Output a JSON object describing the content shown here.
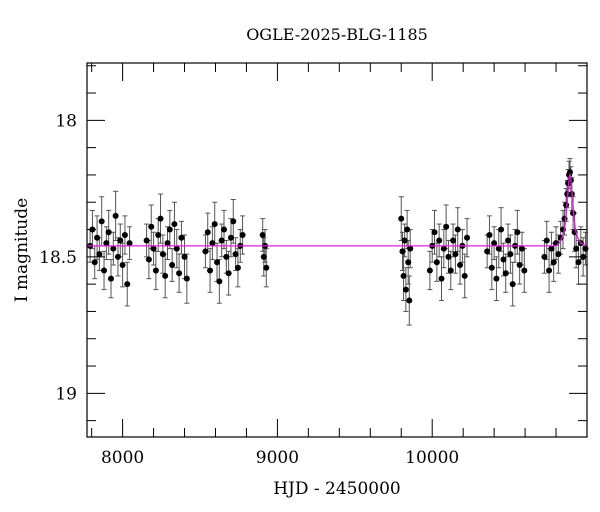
{
  "chart_data": {
    "type": "scatter",
    "title": "OGLE-2025-BLG-1185",
    "xlabel": "HJD - 2450000",
    "ylabel": "I magnitude",
    "xlim": [
      7770,
      11000
    ],
    "ylim": [
      17.79,
      19.16
    ],
    "y_inverted": true,
    "grid": false,
    "x_major_ticks": [
      8000,
      9000,
      10000
    ],
    "x_tick_labels": [
      "8000",
      "9000",
      "10000"
    ],
    "x_minor_step": 200,
    "y_major_ticks": [
      18,
      18.5,
      19
    ],
    "y_tick_labels": [
      "18",
      "18.5",
      "19"
    ],
    "y_minor_step": 0.1,
    "colors": {
      "points": "#000000",
      "errorbars": "#555555",
      "model": "#e01ee0"
    },
    "points": [
      [
        7790,
        18.46,
        0.06
      ],
      [
        7805,
        18.4,
        0.07
      ],
      [
        7820,
        18.52,
        0.06
      ],
      [
        7835,
        18.43,
        0.08
      ],
      [
        7850,
        18.49,
        0.06
      ],
      [
        7865,
        18.37,
        0.09
      ],
      [
        7880,
        18.55,
        0.07
      ],
      [
        7895,
        18.45,
        0.06
      ],
      [
        7910,
        18.41,
        0.08
      ],
      [
        7925,
        18.58,
        0.07
      ],
      [
        7940,
        18.47,
        0.06
      ],
      [
        7955,
        18.35,
        0.09
      ],
      [
        7970,
        18.5,
        0.07
      ],
      [
        7985,
        18.44,
        0.06
      ],
      [
        8000,
        18.53,
        0.08
      ],
      [
        8015,
        18.42,
        0.07
      ],
      [
        8030,
        18.6,
        0.08
      ],
      [
        8045,
        18.45,
        0.06
      ],
      [
        8155,
        18.44,
        0.06
      ],
      [
        8170,
        18.51,
        0.07
      ],
      [
        8185,
        18.39,
        0.08
      ],
      [
        8200,
        18.47,
        0.06
      ],
      [
        8215,
        18.55,
        0.07
      ],
      [
        8230,
        18.42,
        0.06
      ],
      [
        8245,
        18.36,
        0.09
      ],
      [
        8260,
        18.49,
        0.07
      ],
      [
        8275,
        18.57,
        0.08
      ],
      [
        8290,
        18.45,
        0.06
      ],
      [
        8305,
        18.4,
        0.07
      ],
      [
        8320,
        18.53,
        0.06
      ],
      [
        8335,
        18.38,
        0.08
      ],
      [
        8350,
        18.47,
        0.07
      ],
      [
        8365,
        18.56,
        0.07
      ],
      [
        8380,
        18.43,
        0.06
      ],
      [
        8400,
        18.5,
        0.08
      ],
      [
        8415,
        18.58,
        0.09
      ],
      [
        8535,
        18.48,
        0.06
      ],
      [
        8550,
        18.41,
        0.07
      ],
      [
        8565,
        18.55,
        0.08
      ],
      [
        8580,
        18.45,
        0.06
      ],
      [
        8595,
        18.38,
        0.08
      ],
      [
        8610,
        18.52,
        0.07
      ],
      [
        8625,
        18.59,
        0.08
      ],
      [
        8640,
        18.44,
        0.06
      ],
      [
        8655,
        18.4,
        0.07
      ],
      [
        8670,
        18.5,
        0.06
      ],
      [
        8685,
        18.56,
        0.08
      ],
      [
        8700,
        18.43,
        0.07
      ],
      [
        8715,
        18.37,
        0.08
      ],
      [
        8730,
        18.49,
        0.06
      ],
      [
        8745,
        18.54,
        0.07
      ],
      [
        8760,
        18.46,
        0.06
      ],
      [
        8775,
        18.42,
        0.07
      ],
      [
        8905,
        18.42,
        0.06
      ],
      [
        8912,
        18.5,
        0.07
      ],
      [
        8920,
        18.46,
        0.06
      ],
      [
        8928,
        18.54,
        0.07
      ],
      [
        9800,
        18.36,
        0.08
      ],
      [
        9808,
        18.48,
        0.07
      ],
      [
        9815,
        18.57,
        0.09
      ],
      [
        9822,
        18.44,
        0.06
      ],
      [
        9830,
        18.62,
        0.08
      ],
      [
        9838,
        18.4,
        0.07
      ],
      [
        9845,
        18.52,
        0.08
      ],
      [
        9852,
        18.66,
        0.09
      ],
      [
        9858,
        18.47,
        0.07
      ],
      [
        9985,
        18.55,
        0.07
      ],
      [
        10000,
        18.46,
        0.06
      ],
      [
        10015,
        18.41,
        0.08
      ],
      [
        10030,
        18.52,
        0.07
      ],
      [
        10045,
        18.44,
        0.06
      ],
      [
        10060,
        18.58,
        0.08
      ],
      [
        10075,
        18.47,
        0.07
      ],
      [
        10090,
        18.39,
        0.08
      ],
      [
        10105,
        18.5,
        0.06
      ],
      [
        10120,
        18.55,
        0.07
      ],
      [
        10135,
        18.44,
        0.06
      ],
      [
        10150,
        18.49,
        0.07
      ],
      [
        10165,
        18.4,
        0.08
      ],
      [
        10180,
        18.53,
        0.07
      ],
      [
        10195,
        18.46,
        0.06
      ],
      [
        10210,
        18.57,
        0.08
      ],
      [
        10225,
        18.43,
        0.07
      ],
      [
        10355,
        18.48,
        0.06
      ],
      [
        10370,
        18.42,
        0.07
      ],
      [
        10385,
        18.54,
        0.08
      ],
      [
        10400,
        18.45,
        0.06
      ],
      [
        10415,
        18.58,
        0.08
      ],
      [
        10430,
        18.47,
        0.07
      ],
      [
        10445,
        18.4,
        0.08
      ],
      [
        10460,
        18.51,
        0.06
      ],
      [
        10475,
        18.56,
        0.07
      ],
      [
        10490,
        18.44,
        0.06
      ],
      [
        10505,
        18.49,
        0.07
      ],
      [
        10520,
        18.6,
        0.08
      ],
      [
        10535,
        18.46,
        0.06
      ],
      [
        10550,
        18.41,
        0.08
      ],
      [
        10565,
        18.53,
        0.07
      ],
      [
        10580,
        18.47,
        0.06
      ],
      [
        10595,
        18.55,
        0.08
      ],
      [
        10725,
        18.5,
        0.06
      ],
      [
        10740,
        18.44,
        0.07
      ],
      [
        10755,
        18.55,
        0.08
      ],
      [
        10770,
        18.47,
        0.06
      ],
      [
        10785,
        18.52,
        0.07
      ],
      [
        10800,
        18.45,
        0.06
      ],
      [
        10815,
        18.49,
        0.07
      ],
      [
        10830,
        18.43,
        0.06
      ],
      [
        10845,
        18.4,
        0.07
      ],
      [
        10855,
        18.36,
        0.06
      ],
      [
        10865,
        18.31,
        0.06
      ],
      [
        10872,
        18.27,
        0.05
      ],
      [
        10878,
        18.23,
        0.05
      ],
      [
        10884,
        18.2,
        0.05
      ],
      [
        10890,
        18.19,
        0.05
      ],
      [
        10896,
        18.22,
        0.05
      ],
      [
        10902,
        18.27,
        0.06
      ],
      [
        10910,
        18.34,
        0.06
      ],
      [
        10920,
        18.41,
        0.07
      ],
      [
        10930,
        18.47,
        0.07
      ],
      [
        10945,
        18.52,
        0.08
      ],
      [
        10960,
        18.45,
        0.06
      ],
      [
        10975,
        18.5,
        0.07
      ],
      [
        10990,
        18.47,
        0.06
      ]
    ],
    "model": {
      "x": [
        7770,
        10800,
        10820,
        10840,
        10855,
        10865,
        10875,
        10885,
        10890,
        10895,
        10905,
        10915,
        10925,
        10940,
        10960,
        11000
      ],
      "y": [
        18.46,
        18.46,
        18.45,
        18.43,
        18.4,
        18.35,
        18.28,
        18.21,
        18.2,
        18.21,
        18.28,
        18.35,
        18.4,
        18.43,
        18.45,
        18.46
      ]
    }
  }
}
